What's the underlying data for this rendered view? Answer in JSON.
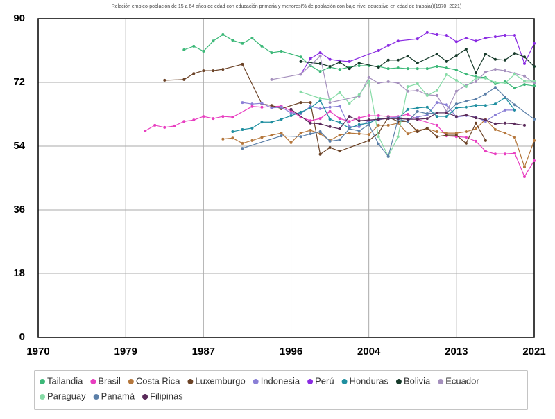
{
  "chart_data": {
    "type": "line",
    "subtitle": "Relación empleo-población de 15 a 64 años de edad con educación primaria y menores(% de población con bajo nivel educativo en edad de trabajar)(1970~2021)",
    "xlim": [
      1970,
      2021
    ],
    "xticks": [
      1970,
      1979,
      1987,
      1996,
      2004,
      2013,
      2021
    ],
    "ylim": [
      0,
      90
    ],
    "yticks": [
      0,
      18,
      36,
      54,
      72,
      90
    ],
    "grid": true,
    "legend": "bottom",
    "series": [
      {
        "name": "Tailandia",
        "color": "#3cb878",
        "x": [
          1985,
          1986,
          1987,
          1988,
          1989,
          1990,
          1991,
          1992,
          1993,
          1994,
          1995,
          1997,
          1998,
          1999,
          2000,
          2001,
          2002,
          2003,
          2004,
          2005,
          2006,
          2007,
          2008,
          2009,
          2010,
          2011,
          2012,
          2013,
          2014,
          2015,
          2016,
          2017,
          2018,
          2019,
          2020,
          2021
        ],
        "values": [
          81.2,
          82.2,
          80.8,
          83.7,
          85.5,
          83.9,
          83,
          84.5,
          82.2,
          80.4,
          80.8,
          79.2,
          76.7,
          75.1,
          76.3,
          75.7,
          76.3,
          76.7,
          76.7,
          76.5,
          75.9,
          76.1,
          75.9,
          75.9,
          75.9,
          76.5,
          76.1,
          75.5,
          74.3,
          73.6,
          73.4,
          71.6,
          72.2,
          70.4,
          71.4,
          71
        ]
      },
      {
        "name": "Brasil",
        "color": "#e83ec0",
        "x": [
          1981,
          1982,
          1983,
          1984,
          1985,
          1986,
          1987,
          1988,
          1989,
          1990,
          1992,
          1993,
          1995,
          1996,
          1997,
          1998,
          1999,
          2000,
          2001,
          2002,
          2003,
          2004,
          2005,
          2006,
          2007,
          2008,
          2009,
          2011,
          2012,
          2013,
          2014,
          2015,
          2016,
          2017,
          2018,
          2019,
          2020,
          2021
        ],
        "values": [
          58.3,
          59.9,
          59.3,
          59.7,
          61,
          61.4,
          62.4,
          61.8,
          62.4,
          62.2,
          65.2,
          65,
          65.3,
          64,
          62.2,
          61.2,
          61.8,
          63.8,
          61.8,
          61,
          62,
          62.6,
          62.6,
          62.4,
          62.4,
          63,
          61.6,
          59.9,
          56.9,
          56.7,
          56.5,
          55.4,
          52.6,
          51.8,
          51.8,
          52,
          45.4,
          49.9
        ]
      },
      {
        "name": "Costa Rica",
        "color": "#b5773c",
        "x": [
          1989,
          1990,
          1991,
          1992,
          1993,
          1994,
          1995,
          1996,
          1997,
          1998,
          1999,
          2000,
          2001,
          2002,
          2003,
          2004,
          2005,
          2006,
          2007,
          2008,
          2009,
          2010,
          2011,
          2012,
          2013,
          2014,
          2015,
          2016,
          2017,
          2018,
          2019,
          2020,
          2021
        ],
        "values": [
          56,
          56.3,
          54.8,
          55.6,
          56.5,
          57.1,
          57.7,
          55,
          57.7,
          58.5,
          57.5,
          55.6,
          57.1,
          57.7,
          57.5,
          57.3,
          59.9,
          59.9,
          60.5,
          57.5,
          58.5,
          58.9,
          58.1,
          57.7,
          57.7,
          58.1,
          58.9,
          61.6,
          58.7,
          57.7,
          56.5,
          48.1,
          55.6
        ]
      },
      {
        "name": "Luxemburgo",
        "color": "#6b4226",
        "x": [
          1983,
          1985,
          1986,
          1987,
          1988,
          1989,
          1991,
          1993,
          1994,
          1995,
          1997,
          1998,
          1999,
          2000,
          2001,
          2004,
          2005,
          2006,
          2007,
          2008,
          2009,
          2010,
          2011,
          2012,
          2013,
          2014,
          2015,
          2016
        ],
        "values": [
          72.6,
          72.8,
          74.5,
          75.3,
          75.3,
          75.7,
          77.1,
          65.9,
          65.5,
          64.6,
          66.3,
          66.3,
          51.7,
          53.6,
          52.6,
          55.6,
          57.7,
          62.2,
          61,
          61,
          58.1,
          59.1,
          56.7,
          57.1,
          57.1,
          54.8,
          60.5,
          55.6
        ]
      },
      {
        "name": "Indonesia",
        "color": "#8a7fd6",
        "x": [
          1991,
          1992,
          1993,
          1994,
          1995,
          1996,
          1997,
          1998,
          1999,
          2000,
          2001,
          2002,
          2003,
          2004,
          2005,
          2006,
          2007,
          2008,
          2009,
          2010,
          2011,
          2012,
          2013,
          2014,
          2015,
          2016,
          2017,
          2018,
          2019
        ],
        "values": [
          66.3,
          65.9,
          66.1,
          64.8,
          65,
          63.4,
          63.2,
          65.2,
          64.6,
          65,
          65.3,
          59.5,
          59.5,
          61.2,
          61.4,
          62,
          62.2,
          61.6,
          62.2,
          62.8,
          66.3,
          65.7,
          62.2,
          62.6,
          62.2,
          61,
          62.8,
          64.2,
          64.2
        ]
      },
      {
        "name": "Perú",
        "color": "#8a2be2",
        "x": [
          1997,
          1998,
          1999,
          2000,
          2001,
          2002,
          2005,
          2006,
          2007,
          2009,
          2010,
          2011,
          2012,
          2013,
          2014,
          2015,
          2016,
          2017,
          2018,
          2019,
          2020,
          2021
        ],
        "values": [
          74.3,
          78.7,
          80.4,
          78.5,
          78.1,
          77.9,
          81,
          82.4,
          83.7,
          84.3,
          86.1,
          85.5,
          85.3,
          83.5,
          84.5,
          83.7,
          84.5,
          84.9,
          85.3,
          85.3,
          77.3,
          83
        ]
      },
      {
        "name": "Honduras",
        "color": "#1f8fa0",
        "x": [
          1990,
          1991,
          1992,
          1993,
          1994,
          1995,
          1996,
          1997,
          1998,
          1999,
          2000,
          2001,
          2002,
          2003,
          2004,
          2005,
          2006,
          2007,
          2008,
          2009,
          2010,
          2011,
          2012,
          2013,
          2014,
          2015,
          2016,
          2017,
          2018,
          2019
        ],
        "values": [
          58.1,
          58.7,
          59.1,
          60.8,
          60.8,
          61.6,
          62.6,
          63.6,
          64.8,
          66.9,
          61.6,
          60.7,
          59.1,
          60.1,
          60.5,
          61.8,
          61.8,
          61.8,
          64.4,
          64.8,
          65,
          62.4,
          62.4,
          64.8,
          65,
          65.5,
          65.5,
          65.9,
          67.7,
          64.2
        ]
      },
      {
        "name": "Bolivia",
        "color": "#163a2a",
        "x": [
          1997,
          1999,
          2000,
          2001,
          2002,
          2003,
          2005,
          2006,
          2007,
          2008,
          2009,
          2011,
          2012,
          2013,
          2014,
          2015,
          2016,
          2017,
          2018,
          2019,
          2020,
          2021
        ],
        "values": [
          77.9,
          77.3,
          76.5,
          77.7,
          75.9,
          77.5,
          76.3,
          78.3,
          78.3,
          79.4,
          77.5,
          80,
          77.9,
          79.6,
          81.4,
          74.7,
          80,
          78.5,
          78.3,
          80.2,
          79.2,
          76.5
        ]
      },
      {
        "name": "Ecuador",
        "color": "#a590bd",
        "x": [
          1994,
          1997,
          1999,
          2000,
          2003,
          2004,
          2005,
          2006,
          2007,
          2008,
          2009,
          2010,
          2011,
          2012,
          2013,
          2014,
          2015,
          2016,
          2017,
          2018,
          2019,
          2020,
          2021
        ],
        "values": [
          72.8,
          74.3,
          79.4,
          66.3,
          68.1,
          73.4,
          71.8,
          72.2,
          71.8,
          69.5,
          69.7,
          68.5,
          68.3,
          63.8,
          69.5,
          71.2,
          72.2,
          74.9,
          75.7,
          75.3,
          74.5,
          73.8,
          71.8
        ]
      },
      {
        "name": "Paraguay",
        "color": "#86dba6",
        "x": [
          1997,
          1999,
          2000,
          2001,
          2002,
          2003,
          2004,
          2005,
          2006,
          2007,
          2008,
          2009,
          2010,
          2011,
          2012,
          2013,
          2014,
          2015,
          2016,
          2017,
          2018,
          2019,
          2020,
          2021
        ],
        "values": [
          69.3,
          67.5,
          67.1,
          69.1,
          66.1,
          68.5,
          72.4,
          56.7,
          51.1,
          56.7,
          70.8,
          71.6,
          68.3,
          69.7,
          74.2,
          72.6,
          70.8,
          73.2,
          73.2,
          72,
          71.8,
          74.3,
          72.4,
          72.4
        ]
      },
      {
        "name": "Panamá",
        "color": "#5b7fa8",
        "x": [
          1991,
          1995,
          1997,
          1998,
          1999,
          2000,
          2001,
          2002,
          2003,
          2004,
          2005,
          2006,
          2007,
          2008,
          2009,
          2010,
          2011,
          2012,
          2013,
          2014,
          2015,
          2016,
          2017,
          2018,
          2019,
          2021
        ],
        "values": [
          53.4,
          56.9,
          56.7,
          57.5,
          58.1,
          55.4,
          55.8,
          58.9,
          58.3,
          60.1,
          54.6,
          51.1,
          61.6,
          61,
          63.8,
          63.2,
          63.4,
          63.4,
          65.9,
          66.7,
          67.3,
          68.7,
          70.6,
          67.9,
          65.7,
          61.6
        ]
      },
      {
        "name": "Filipinas",
        "color": "#5a2a5a",
        "x": [
          1996,
          1998,
          1999,
          2000,
          2001,
          2002,
          2003,
          2004,
          2005,
          2006,
          2007,
          2008,
          2009,
          2010,
          2011,
          2012,
          2013,
          2014,
          2015,
          2016,
          2017,
          2018,
          2019,
          2020
        ],
        "values": [
          64.4,
          60.5,
          60.3,
          59.5,
          58.9,
          62.4,
          61.2,
          61.4,
          61.6,
          61.8,
          61.8,
          61.6,
          61.6,
          61.8,
          63.4,
          63.4,
          62.4,
          62.8,
          62,
          61.4,
          60.3,
          60.5,
          60.3,
          59.9
        ]
      }
    ]
  }
}
